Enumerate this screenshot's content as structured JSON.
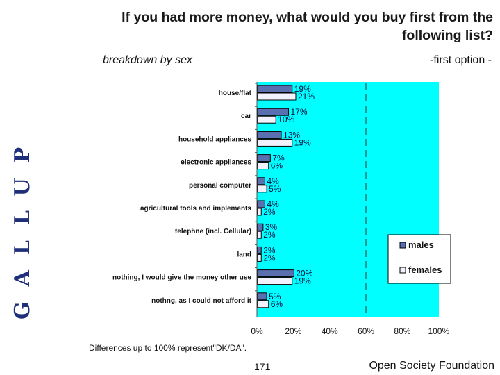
{
  "header": {
    "title": "If you had more money, what would you buy first from the following list?",
    "subtitle": "breakdown by sex",
    "option_label": "-first option -"
  },
  "logo": {
    "text": "GALLUP"
  },
  "footer": {
    "note": "Differences up to 100% represent\"DK/DA\".",
    "page_number": "171",
    "organization": "Open Society Foundation"
  },
  "colors": {
    "plot_background": "#00ffff",
    "males_bar": "#5a6fb0",
    "females_bar": "#f2f2ff",
    "bar_outline": "#000000"
  },
  "chart_data": {
    "type": "bar",
    "orientation": "horizontal",
    "title": "If you had more money, what would you buy first from the following list?",
    "subtitle": "breakdown by sex",
    "categories": [
      "house/flat",
      "car",
      "household appliances",
      "electronic appliances",
      "personal computer",
      "agricultural tools and implements",
      "telephne (incl. Cellular)",
      "land",
      "nothing, I would give the money other use",
      "nothng, as I could not afford it"
    ],
    "series": [
      {
        "name": "males",
        "values": [
          19,
          17,
          13,
          7,
          4,
          4,
          3,
          2,
          20,
          5
        ],
        "labels": [
          "19%",
          "17%",
          "13%",
          "7%",
          "4%",
          "4%",
          "3%",
          "2%",
          "20%",
          "5%"
        ]
      },
      {
        "name": "females",
        "values": [
          21,
          10,
          19,
          6,
          5,
          2,
          2,
          2,
          19,
          6
        ],
        "labels": [
          "21%",
          "10%",
          "19%",
          "6%",
          "5%",
          "2%",
          "2%",
          "2%",
          "19%",
          "6%"
        ]
      }
    ],
    "xlim": [
      0,
      100
    ],
    "xticks": [
      "0%",
      "20%",
      "40%",
      "60%",
      "80%",
      "100%"
    ],
    "gridline_at": 60,
    "legend_position": "right"
  }
}
